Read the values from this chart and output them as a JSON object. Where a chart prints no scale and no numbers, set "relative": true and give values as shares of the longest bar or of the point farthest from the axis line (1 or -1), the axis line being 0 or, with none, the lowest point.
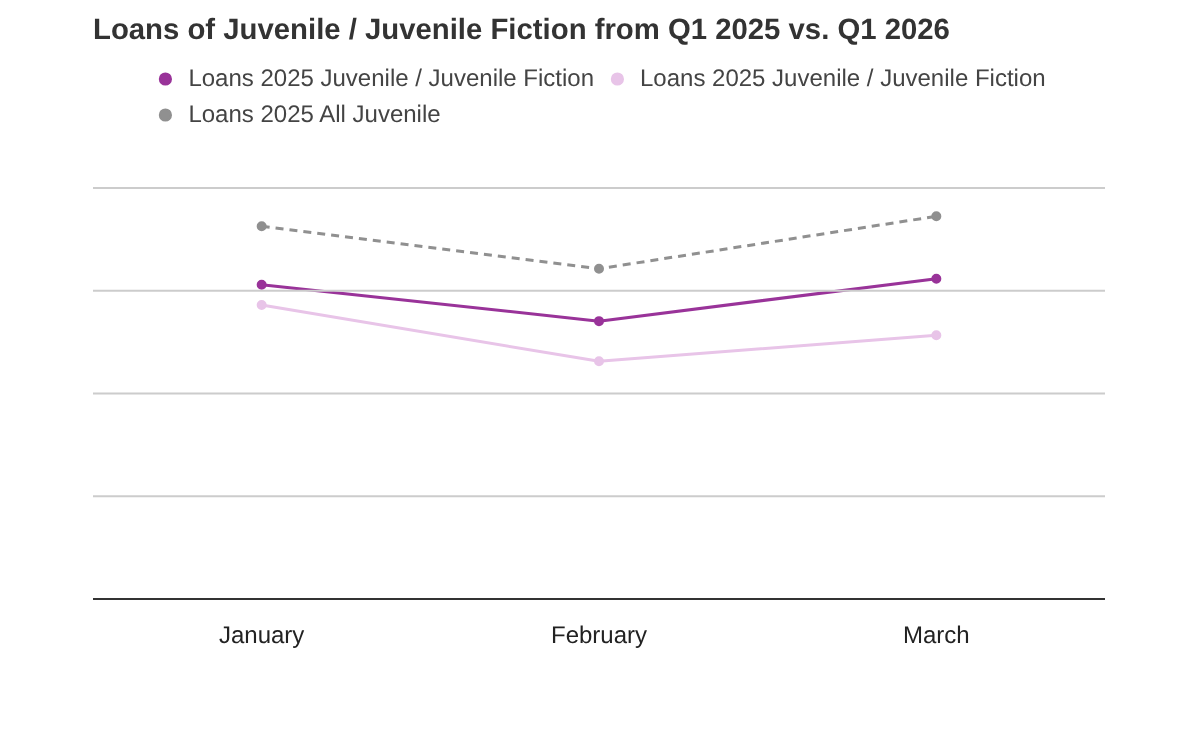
{
  "chart_data": {
    "type": "line",
    "title": "Loans of Juvenile / Juvenile Fiction from Q1 2025 vs. Q1 2026",
    "categories": [
      "January",
      "February",
      "March"
    ],
    "relative": true,
    "grid": "y",
    "legend": "top",
    "marker": "circle",
    "series": [
      {
        "name": "Loans 2025 Juvenile / Juvenile Fiction",
        "color": "#993399",
        "values": [
          0.821,
          0.726,
          0.837
        ]
      },
      {
        "name": "Loans 2025 Juvenile / Juvenile Fiction",
        "color": "#e8c4e8",
        "values": [
          0.768,
          0.621,
          0.689
        ]
      },
      {
        "name": "Loans 2025 All Juvenile",
        "color": "#909090",
        "values": [
          0.974,
          0.863,
          1.0
        ],
        "line_style": "dashed"
      }
    ]
  }
}
